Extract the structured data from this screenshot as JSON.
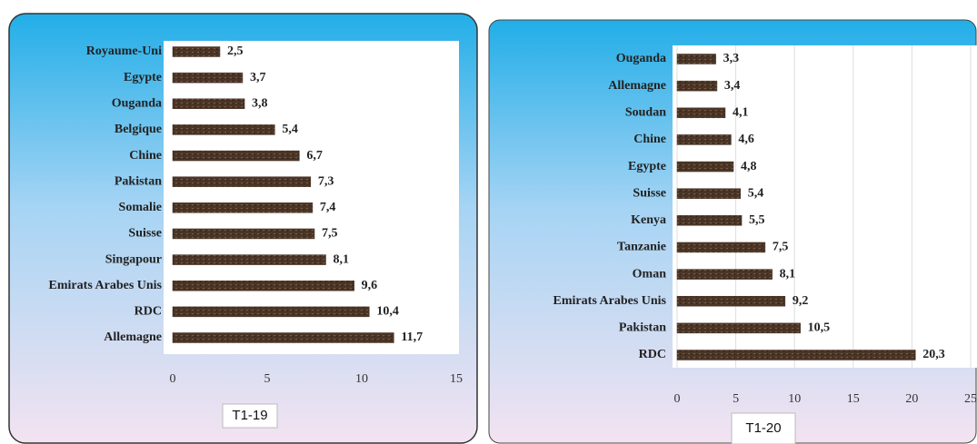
{
  "chart_data": [
    {
      "type": "bar",
      "orientation": "horizontal",
      "title": "T1-19",
      "categories": [
        "Royaume-Uni",
        "Egypte",
        "Ouganda",
        "Belgique",
        "Chine",
        "Pakistan",
        "Somalie",
        "Suisse",
        "Singapour",
        "Emirats Arabes Unis",
        "RDC",
        "Allemagne"
      ],
      "values": [
        2.5,
        3.7,
        3.8,
        5.4,
        6.7,
        7.3,
        7.4,
        7.5,
        8.1,
        9.6,
        10.4,
        11.7
      ],
      "value_labels": [
        "2,5",
        "3,7",
        "3,8",
        "5,4",
        "6,7",
        "7,3",
        "7,4",
        "7,5",
        "8,1",
        "9,6",
        "10,4",
        "11,7"
      ],
      "color": "#4a3526",
      "xlim": [
        0,
        15
      ],
      "xticks": [
        0,
        5,
        10,
        15
      ],
      "grid": false
    },
    {
      "type": "bar",
      "orientation": "horizontal",
      "title": "T1-20",
      "categories": [
        "Ouganda",
        "Allemagne",
        "Soudan",
        "Chine",
        "Egypte",
        "Suisse",
        "Kenya",
        "Tanzanie",
        "Oman",
        "Emirats Arabes Unis",
        "Pakistan",
        "RDC"
      ],
      "values": [
        3.3,
        3.4,
        4.1,
        4.6,
        4.8,
        5.4,
        5.5,
        7.5,
        8.1,
        9.2,
        10.5,
        20.3
      ],
      "value_labels": [
        "3,3",
        "3,4",
        "4,1",
        "4,6",
        "4,8",
        "5,4",
        "5,5",
        "7,5",
        "8,1",
        "9,2",
        "10,5",
        "20,3"
      ],
      "color": "#4a3526",
      "xlim": [
        0,
        25
      ],
      "xticks": [
        0,
        5,
        10,
        15,
        20,
        25
      ],
      "grid": true
    }
  ]
}
